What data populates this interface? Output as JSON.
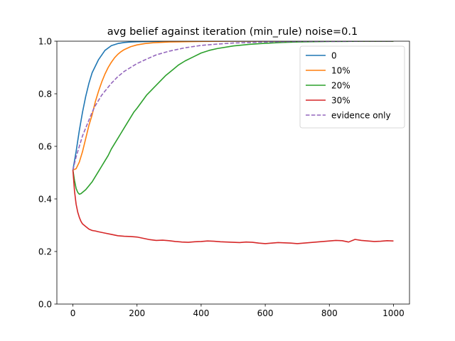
{
  "chart_data": {
    "type": "line",
    "title": "avg belief against iteration (min_rule) noise=0.1",
    "xlabel": "",
    "ylabel": "",
    "xlim": [
      -50,
      1050
    ],
    "ylim": [
      0.0,
      1.0
    ],
    "xticks": [
      0,
      200,
      400,
      600,
      800,
      1000
    ],
    "yticks": [
      0.0,
      0.2,
      0.4,
      0.6,
      0.8,
      1.0
    ],
    "xtick_labels": [
      "0",
      "200",
      "400",
      "600",
      "800",
      "1000"
    ],
    "ytick_labels": [
      "0.0",
      "0.2",
      "0.4",
      "0.6",
      "0.8",
      "1.0"
    ],
    "grid": false,
    "legend_position": "top-right",
    "series": [
      {
        "name": "0",
        "color": "#1f77b4",
        "dash": "solid",
        "x": [
          0,
          10,
          20,
          30,
          40,
          50,
          60,
          80,
          100,
          120,
          140,
          160,
          180,
          200,
          250,
          300,
          400,
          500,
          600,
          700,
          800,
          900,
          1000
        ],
        "y": [
          0.51,
          0.58,
          0.66,
          0.73,
          0.79,
          0.84,
          0.88,
          0.93,
          0.965,
          0.983,
          0.991,
          0.995,
          0.997,
          0.998,
          0.999,
          1.0,
          1.0,
          1.0,
          1.0,
          1.0,
          1.0,
          1.0,
          1.0
        ]
      },
      {
        "name": "10%",
        "color": "#ff7f0e",
        "dash": "solid",
        "x": [
          0,
          10,
          20,
          30,
          40,
          50,
          60,
          70,
          80,
          90,
          100,
          110,
          120,
          130,
          140,
          150,
          160,
          180,
          200,
          225,
          250,
          300,
          350,
          400,
          500,
          600,
          700,
          800,
          900,
          1000
        ],
        "y": [
          0.51,
          0.515,
          0.54,
          0.58,
          0.63,
          0.68,
          0.72,
          0.77,
          0.81,
          0.845,
          0.875,
          0.9,
          0.92,
          0.937,
          0.95,
          0.96,
          0.968,
          0.979,
          0.986,
          0.991,
          0.994,
          0.997,
          0.998,
          0.999,
          1.0,
          1.0,
          1.0,
          1.0,
          1.0,
          1.0
        ]
      },
      {
        "name": "20%",
        "color": "#2ca02c",
        "dash": "solid",
        "x": [
          0,
          5,
          10,
          15,
          20,
          25,
          30,
          40,
          50,
          60,
          70,
          80,
          90,
          100,
          110,
          120,
          130,
          140,
          150,
          160,
          170,
          180,
          190,
          200,
          215,
          230,
          250,
          270,
          290,
          310,
          330,
          350,
          375,
          400,
          425,
          450,
          500,
          550,
          600,
          650,
          700,
          750,
          800,
          850,
          900,
          950,
          1000
        ],
        "y": [
          0.51,
          0.47,
          0.44,
          0.425,
          0.418,
          0.42,
          0.425,
          0.435,
          0.45,
          0.465,
          0.485,
          0.505,
          0.525,
          0.545,
          0.565,
          0.59,
          0.61,
          0.63,
          0.65,
          0.67,
          0.69,
          0.71,
          0.73,
          0.745,
          0.77,
          0.795,
          0.82,
          0.845,
          0.87,
          0.89,
          0.91,
          0.925,
          0.94,
          0.955,
          0.965,
          0.972,
          0.982,
          0.988,
          0.992,
          0.995,
          0.997,
          0.998,
          0.999,
          0.999,
          1.0,
          1.0,
          1.0
        ]
      },
      {
        "name": "30%",
        "color": "#d62728",
        "dash": "solid",
        "x": [
          0,
          5,
          10,
          15,
          20,
          25,
          30,
          40,
          50,
          60,
          70,
          80,
          100,
          120,
          140,
          160,
          180,
          200,
          220,
          240,
          260,
          280,
          300,
          320,
          340,
          360,
          380,
          400,
          420,
          440,
          460,
          480,
          500,
          520,
          540,
          560,
          580,
          600,
          620,
          640,
          660,
          680,
          700,
          720,
          740,
          760,
          780,
          800,
          820,
          840,
          860,
          880,
          900,
          920,
          940,
          960,
          980,
          1000
        ],
        "y": [
          0.51,
          0.43,
          0.38,
          0.35,
          0.33,
          0.315,
          0.305,
          0.295,
          0.285,
          0.28,
          0.278,
          0.275,
          0.27,
          0.265,
          0.26,
          0.258,
          0.257,
          0.255,
          0.25,
          0.245,
          0.242,
          0.243,
          0.241,
          0.238,
          0.236,
          0.235,
          0.237,
          0.238,
          0.24,
          0.239,
          0.237,
          0.236,
          0.235,
          0.234,
          0.236,
          0.235,
          0.232,
          0.23,
          0.232,
          0.234,
          0.233,
          0.232,
          0.23,
          0.232,
          0.234,
          0.236,
          0.238,
          0.24,
          0.242,
          0.241,
          0.236,
          0.246,
          0.242,
          0.24,
          0.238,
          0.239,
          0.241,
          0.24
        ]
      },
      {
        "name": "evidence only",
        "color": "#9467bd",
        "dash": "dashed",
        "x": [
          0,
          10,
          20,
          30,
          40,
          50,
          60,
          70,
          80,
          90,
          100,
          120,
          140,
          160,
          180,
          200,
          230,
          260,
          300,
          350,
          400,
          450,
          500,
          600,
          700,
          800,
          900,
          1000
        ],
        "y": [
          0.51,
          0.56,
          0.6,
          0.64,
          0.67,
          0.7,
          0.73,
          0.755,
          0.775,
          0.795,
          0.81,
          0.84,
          0.865,
          0.885,
          0.9,
          0.915,
          0.932,
          0.948,
          0.962,
          0.975,
          0.984,
          0.989,
          0.993,
          0.997,
          0.999,
          0.999,
          1.0,
          1.0
        ]
      }
    ]
  }
}
